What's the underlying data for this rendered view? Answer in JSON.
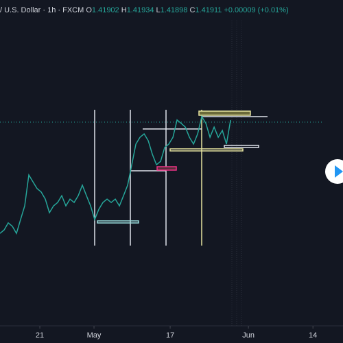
{
  "header": {
    "symbol": "/ U.S. Dollar",
    "interval": "1h",
    "source": "FXCM",
    "ohlc": [
      {
        "label": "O",
        "value": "1.41902"
      },
      {
        "label": "H",
        "value": "1.41934"
      },
      {
        "label": "L",
        "value": "1.41898"
      },
      {
        "label": "C",
        "value": "1.41911"
      }
    ],
    "change": "+0.00009 (+0.01%)"
  },
  "chart_data": {
    "type": "line",
    "x": [
      0,
      1,
      2,
      3,
      4,
      5,
      6,
      7,
      8,
      9,
      10,
      11,
      12,
      13,
      14,
      15,
      16,
      17,
      18,
      19,
      20,
      21,
      22,
      23,
      24,
      25,
      26,
      27,
      28,
      29,
      30,
      31,
      32,
      33,
      34,
      35,
      36,
      37,
      38,
      39,
      40,
      41,
      42,
      43,
      44,
      45,
      46,
      47,
      48,
      49,
      50,
      51,
      52,
      53,
      54,
      55,
      56
    ],
    "series": [
      {
        "color": "#26a69a",
        "values": [
          1.3831,
          1.3842,
          1.3865,
          1.3854,
          1.3831,
          1.3876,
          1.392,
          1.402,
          1.3998,
          1.3976,
          1.3965,
          1.3942,
          1.3898,
          1.392,
          1.3931,
          1.3953,
          1.392,
          1.3942,
          1.3931,
          1.3953,
          1.3987,
          1.3953,
          1.392,
          1.3876,
          1.3909,
          1.3931,
          1.3942,
          1.3931,
          1.3942,
          1.392,
          1.3953,
          1.3987,
          1.4053,
          1.412,
          1.4142,
          1.4153,
          1.4131,
          1.4087,
          1.4053,
          1.4064,
          1.4109,
          1.412,
          1.4142,
          1.4198,
          1.4187,
          1.4175,
          1.4142,
          1.412,
          1.4153,
          1.4209,
          1.4187,
          1.4142,
          1.4175,
          1.4142,
          1.4164,
          1.412,
          1.4198
        ]
      }
    ],
    "xlim": [
      0,
      83.3
    ],
    "ylim": [
      1.3543,
      1.4586
    ],
    "xticks": [
      {
        "value": 9.67,
        "label": "21"
      },
      {
        "value": 22.83,
        "label": "May"
      },
      {
        "value": 41.33,
        "label": "17"
      },
      {
        "value": 60.33,
        "label": "Jun"
      },
      {
        "value": 76,
        "label": "14"
      }
    ]
  }
}
